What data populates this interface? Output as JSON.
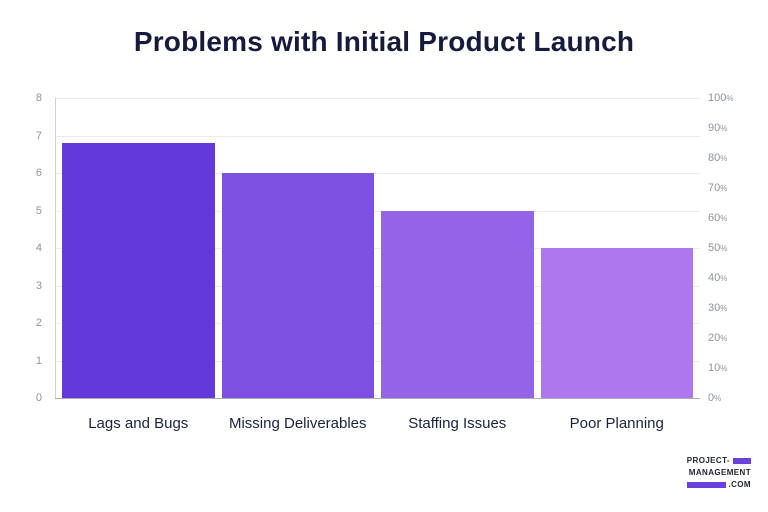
{
  "chart_data": {
    "type": "bar",
    "title": "Problems with Initial Product Launch",
    "categories": [
      "Lags and Bugs",
      "Missing Deliverables",
      "Staffing Issues",
      "Poor Planning"
    ],
    "values": [
      6.8,
      6.0,
      5.0,
      4.0
    ],
    "values_percent": [
      85,
      75,
      62.5,
      50
    ],
    "bar_colors": [
      "#6439dc",
      "#7d50e1",
      "#9564e6",
      "#ad77ee"
    ],
    "left_axis": {
      "min": 0,
      "max": 8,
      "step": 1,
      "ticks": [
        "8",
        "7",
        "6",
        "5",
        "4",
        "3",
        "2",
        "1",
        "0"
      ]
    },
    "right_axis": {
      "min": 0,
      "max": 100,
      "step": 10,
      "ticks": [
        {
          "value": "100",
          "suffix": "%"
        },
        {
          "value": "90",
          "suffix": "%"
        },
        {
          "value": "80",
          "suffix": "%"
        },
        {
          "value": "70",
          "suffix": "%"
        },
        {
          "value": "60",
          "suffix": "%"
        },
        {
          "value": "50",
          "suffix": "%"
        },
        {
          "value": "40",
          "suffix": "%"
        },
        {
          "value": "30",
          "suffix": "%"
        },
        {
          "value": "20",
          "suffix": "%"
        },
        {
          "value": "10",
          "suffix": "%"
        },
        {
          "value": "0",
          "suffix": "%"
        }
      ]
    },
    "grid": true,
    "legend": false,
    "colors": {
      "title_text": "#161b3d",
      "category_text": "#1b2142",
      "tick_text": "#8e939c",
      "gridline": "#e9ebef",
      "baseline": "#a9adb5",
      "axis_line": "#cdd1d7",
      "background": "#ffffff"
    }
  },
  "logo": {
    "line1_text": "PROJECT-",
    "line2_text": "MANAGEMENT",
    "line3_text": ".COM",
    "accent_color": "#6b40db"
  }
}
